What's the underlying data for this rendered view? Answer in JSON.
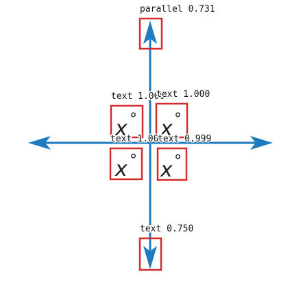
{
  "colors": {
    "axis": "#1f7bbf",
    "box": "#d42a2a",
    "text": "#231f20",
    "background": "#ffffff"
  },
  "variables": {
    "tl": {
      "letter": "x",
      "unit": "°"
    },
    "tr": {
      "letter": "x",
      "unit": "°"
    },
    "bl": {
      "letter": "x",
      "unit": "°"
    },
    "br": {
      "letter": "x",
      "unit": "°"
    }
  },
  "detections": {
    "parallel": "parallel 0.731",
    "text_tl": "text 1.000",
    "text_tr": "text 1.000",
    "text_bl": "text 1.000",
    "text_br": "text 0.999",
    "text_bottom": "text 0.750"
  }
}
